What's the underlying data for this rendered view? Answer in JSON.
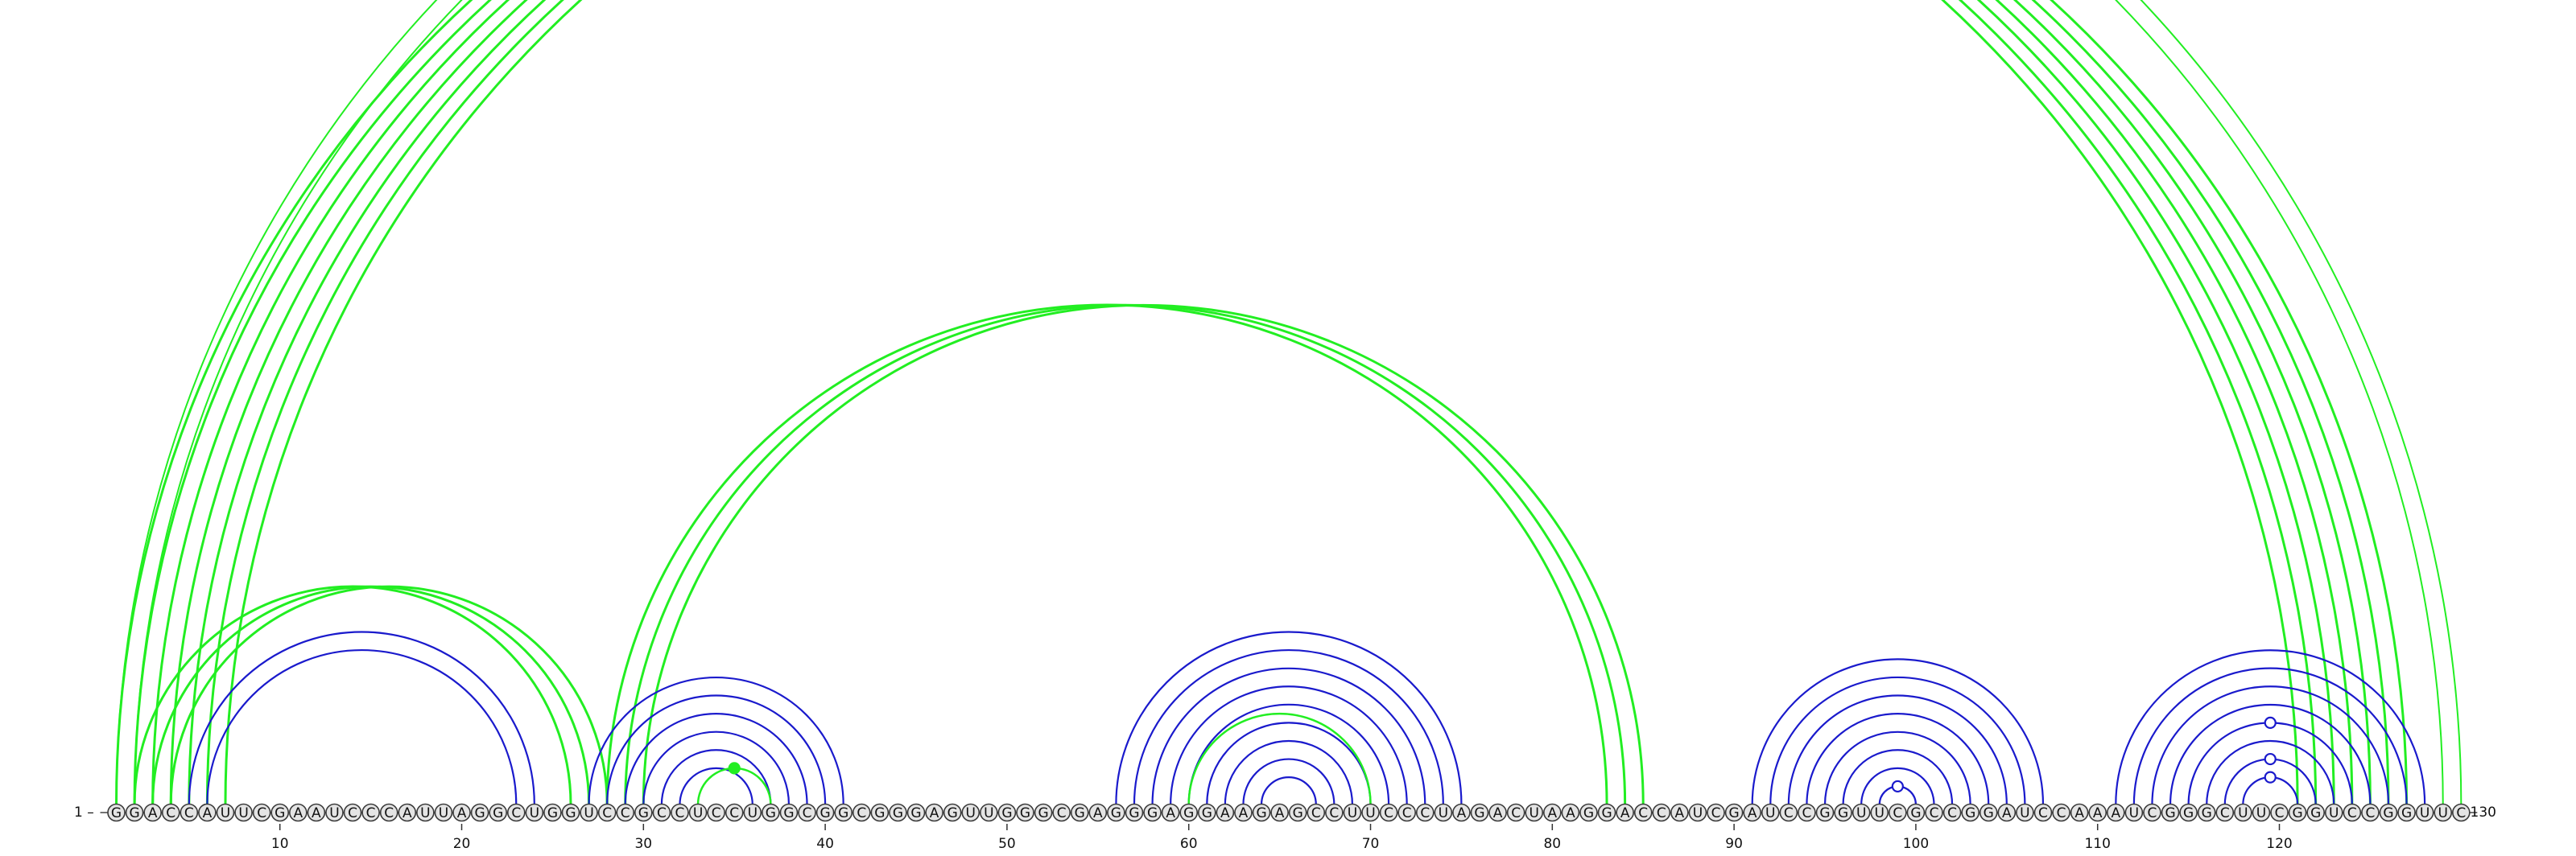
{
  "sequence": "GGACCAUUCGAAUCCCAUUAGGCUGGUCCGCCUCCUGGCGGCGGGAGUUGGGCGAGGGAGGAAGAGCCUUCCCUAGACUAAGGACCAUCGAUCCGGUUCGCCGGAUCCAAAUCGGGCUUCGGUCCGGUUC",
  "labels": {
    "start_index": "1",
    "end_index": "130",
    "start_text": "1 –",
    "end_text": "–130",
    "ticks": [
      "10",
      "20",
      "30",
      "40",
      "50",
      "60",
      "70",
      "80",
      "90",
      "100",
      "110",
      "120"
    ]
  },
  "colors": {
    "primary_structure": "#1a1acc",
    "alternate_structure": "#22ee22",
    "node_fill": "#e4e4e4",
    "node_stroke": "#3a3a3a"
  },
  "arc_groups": [
    {
      "color": "alternate_structure",
      "width": 2,
      "pairs": [
        [
          1,
          130
        ],
        [
          2,
          129
        ]
      ]
    },
    {
      "color": "alternate_structure",
      "width": 3,
      "pairs": [
        [
          1,
          121
        ],
        [
          2,
          122
        ],
        [
          3,
          123
        ],
        [
          4,
          124
        ],
        [
          5,
          125
        ],
        [
          6,
          126
        ],
        [
          7,
          127
        ]
      ]
    },
    {
      "color": "alternate_structure",
      "width": 3,
      "pairs": [
        [
          28,
          83
        ],
        [
          29,
          84
        ],
        [
          30,
          85
        ]
      ]
    },
    {
      "color": "alternate_structure",
      "width": 3,
      "pairs": [
        [
          2,
          26
        ],
        [
          3,
          27
        ],
        [
          4,
          28
        ]
      ]
    },
    {
      "color": "primary_structure",
      "width": 2.2,
      "pairs": [
        [
          5,
          24
        ],
        [
          6,
          23
        ]
      ]
    },
    {
      "color": "primary_structure",
      "width": 2.2,
      "pairs": [
        [
          27,
          41
        ],
        [
          28,
          40
        ],
        [
          29,
          39
        ],
        [
          30,
          38
        ],
        [
          31,
          37
        ],
        [
          32,
          36
        ]
      ]
    },
    {
      "color": "alternate_structure",
      "width": 2.5,
      "pairs": [
        [
          33,
          37
        ]
      ]
    },
    {
      "color": "primary_structure",
      "width": 2.2,
      "pairs": [
        [
          56,
          75
        ],
        [
          57,
          74
        ],
        [
          58,
          73
        ],
        [
          59,
          72
        ],
        [
          60,
          71
        ],
        [
          61,
          70
        ],
        [
          62,
          69
        ]
      ]
    },
    {
      "color": "alternate_structure",
      "width": 2.5,
      "pairs": [
        [
          60,
          70
        ]
      ]
    },
    {
      "color": "primary_structure",
      "width": 2.2,
      "pairs": [
        [
          63,
          68
        ],
        [
          64,
          67
        ]
      ]
    },
    {
      "color": "primary_structure",
      "width": 2.2,
      "pairs": [
        [
          91,
          107
        ],
        [
          92,
          106
        ],
        [
          93,
          105
        ],
        [
          94,
          104
        ],
        [
          95,
          103
        ],
        [
          96,
          102
        ],
        [
          97,
          101
        ],
        [
          98,
          100
        ]
      ]
    },
    {
      "color": "primary_structure",
      "width": 2.2,
      "pairs": [
        [
          111,
          128
        ],
        [
          112,
          127
        ],
        [
          113,
          126
        ],
        [
          114,
          125
        ],
        [
          115,
          124
        ],
        [
          116,
          123
        ],
        [
          117,
          122
        ],
        [
          118,
          121
        ]
      ]
    }
  ],
  "marker_dots": [
    {
      "at": 65.5,
      "over_pair": [
        1,
        130
      ],
      "color": "alternate_structure",
      "filled": false
    },
    {
      "at": 35,
      "over_pair": [
        33,
        37
      ],
      "color": "alternate_structure",
      "filled": true
    },
    {
      "at": 99,
      "over_pair": [
        98,
        100
      ],
      "color": "primary_structure",
      "filled": false
    },
    {
      "at": 119.5,
      "over_pair": [
        115,
        124
      ],
      "color": "primary_structure",
      "filled": false
    },
    {
      "at": 119.5,
      "over_pair": [
        117,
        122
      ],
      "color": "primary_structure",
      "filled": false
    },
    {
      "at": 119.5,
      "over_pair": [
        118,
        121
      ],
      "color": "primary_structure",
      "filled": false
    }
  ]
}
